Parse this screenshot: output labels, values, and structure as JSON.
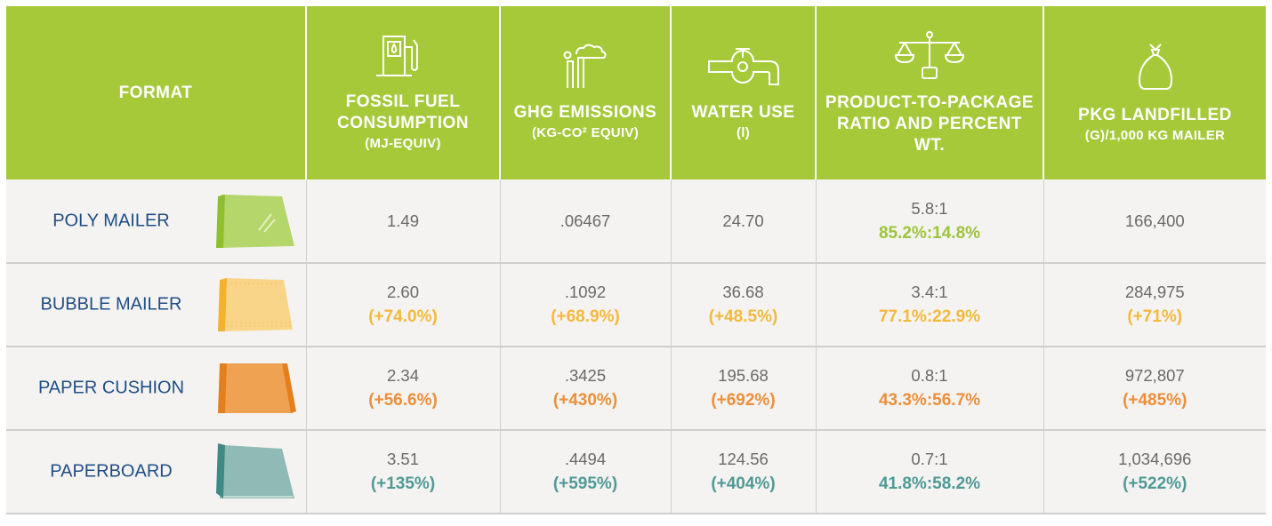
{
  "colors": {
    "header_bg": "#a6c93a",
    "poly": "#9dc43a",
    "bubble": "#f4b93a",
    "paper": "#ec8f3a",
    "paperboard": "#4f9a96"
  },
  "chart_data": {
    "type": "table",
    "columns": [
      {
        "title": "FORMAT",
        "unit": "",
        "icon": "none"
      },
      {
        "title": "FOSSIL FUEL CONSUMPTION",
        "unit": "(MJ-EQUIV)",
        "icon": "fuel-pump-icon"
      },
      {
        "title": "GHG EMISSIONS",
        "unit": "(KG-CO² EQUIV)",
        "icon": "factory-emissions-icon"
      },
      {
        "title": "WATER USE",
        "unit": "(l)",
        "icon": "water-faucet-icon"
      },
      {
        "title": "PRODUCT-TO-PACKAGE RATIO AND PERCENT WT.",
        "unit": "",
        "icon": "balance-scale-icon"
      },
      {
        "title": "PKG LANDFILLED",
        "unit": "(G)/1,000 KG MAILER",
        "icon": "trash-bag-icon"
      }
    ],
    "rows": [
      {
        "format": "POLY MAILER",
        "color_key": "poly",
        "fossil_fuel": "1.49",
        "fossil_fuel_pct": "",
        "ghg": ".06467",
        "ghg_pct": "",
        "water": "24.70",
        "water_pct": "",
        "ratio": "5.8:1",
        "percent_wt": "85.2%:14.8%",
        "landfilled": "166,400",
        "landfilled_pct": ""
      },
      {
        "format": "BUBBLE MAILER",
        "color_key": "bubble",
        "fossil_fuel": "2.60",
        "fossil_fuel_pct": "(+74.0%)",
        "ghg": ".1092",
        "ghg_pct": "(+68.9%)",
        "water": "36.68",
        "water_pct": "(+48.5%)",
        "ratio": "3.4:1",
        "percent_wt": "77.1%:22.9%",
        "landfilled": "284,975",
        "landfilled_pct": "(+71%)"
      },
      {
        "format": "PAPER CUSHION",
        "color_key": "paper",
        "fossil_fuel": "2.34",
        "fossil_fuel_pct": "(+56.6%)",
        "ghg": ".3425",
        "ghg_pct": "(+430%)",
        "water": "195.68",
        "water_pct": "(+692%)",
        "ratio": "0.8:1",
        "percent_wt": "43.3%:56.7%",
        "landfilled": "972,807",
        "landfilled_pct": "(+485%)"
      },
      {
        "format": "PAPERBOARD",
        "color_key": "paperboard",
        "fossil_fuel": "3.51",
        "fossil_fuel_pct": "(+135%)",
        "ghg": ".4494",
        "ghg_pct": "(+595%)",
        "water": "124.56",
        "water_pct": "(+404%)",
        "ratio": "0.7:1",
        "percent_wt": "41.8%:58.2%",
        "landfilled": "1,034,696",
        "landfilled_pct": "(+522%)"
      }
    ]
  }
}
